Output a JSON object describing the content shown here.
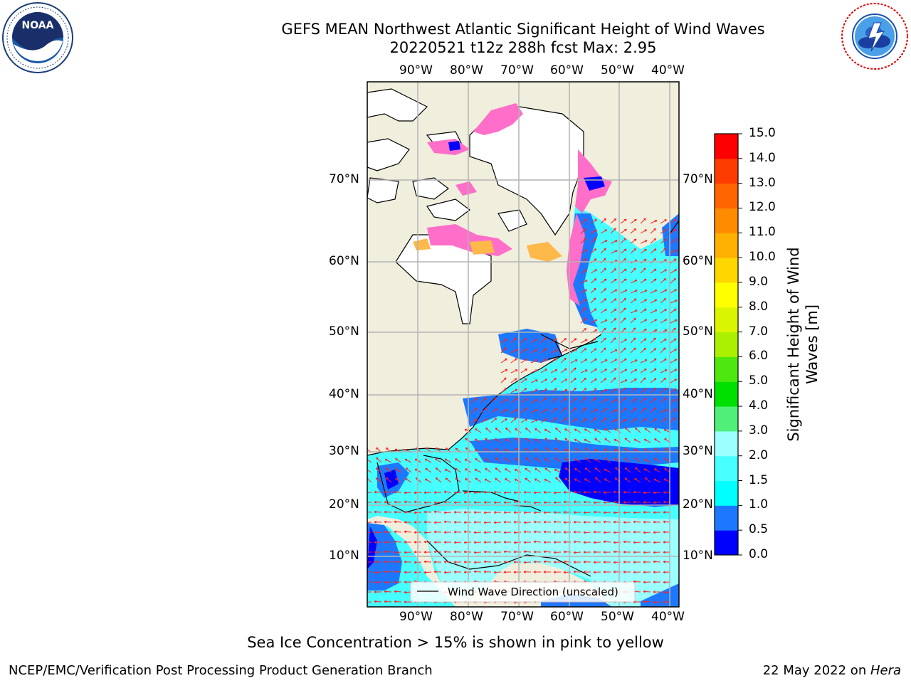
{
  "header": {
    "title_line1": "GEFS MEAN Northwest Atlantic Significant Height of Wind Waves",
    "title_line2": "20220521 t12z 288h fcst   Max: 2.95"
  },
  "logos": {
    "left": {
      "name": "noaa-logo",
      "text": "NOAA",
      "ring_text": "NATIONAL OCEANIC AND ATMOSPHERIC ADMINISTRATION · U.S. DEPARTMENT OF COMMERCE"
    },
    "right": {
      "name": "nws-logo",
      "ring_text": "NATIONAL WEATHER SERVICE"
    }
  },
  "map": {
    "lon_labels": [
      "90°W",
      "80°W",
      "70°W",
      "60°W",
      "50°W",
      "40°W"
    ],
    "lat_labels": [
      "70°N",
      "60°N",
      "50°N",
      "40°N",
      "30°N",
      "20°N",
      "10°N"
    ],
    "legend_label": "Wind Wave Direction (unscaled)",
    "colors": {
      "land": "#f0eedc",
      "ice_free_land": "#ffffff",
      "arrow": "#ff2020",
      "grid": "#b4b4b4"
    }
  },
  "colorbar": {
    "label_line1": "Significant Height of Wind",
    "label_line2": "Waves [m]",
    "ticks": [
      "0.0",
      "0.5",
      "1.0",
      "1.5",
      "2.0",
      "3.0",
      "4.0",
      "5.0",
      "6.0",
      "7.0",
      "8.0",
      "9.0",
      "10.0",
      "11.0",
      "12.0",
      "13.0",
      "14.0",
      "15.0"
    ],
    "colors": [
      "#0000ff",
      "#1e78ff",
      "#00ffff",
      "#46ffff",
      "#9bffff",
      "#50f078",
      "#00e000",
      "#4ee80e",
      "#aaf000",
      "#d9f500",
      "#ffff00",
      "#ffd700",
      "#ffb000",
      "#ff8c00",
      "#ff6400",
      "#ff3c00",
      "#ff0000"
    ]
  },
  "footer": {
    "note": "Sea Ice Concentration > 15% is shown in pink to yellow",
    "left": "NCEP/EMC/Verification Post Processing Product Generation Branch",
    "date": "22 May 2022 on ",
    "host": "Hera"
  }
}
